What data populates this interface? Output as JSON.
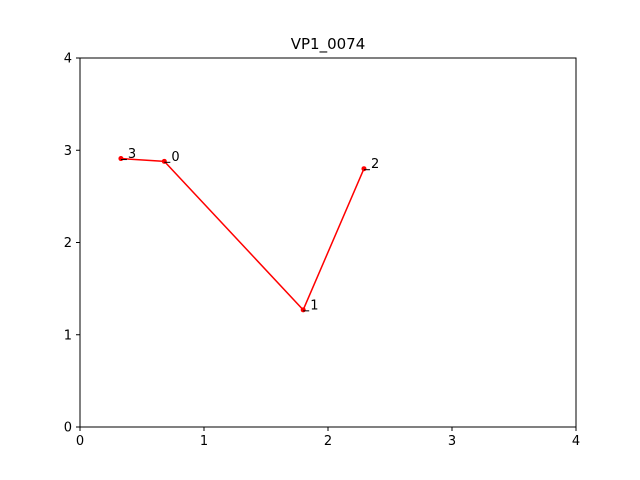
{
  "chart_data": {
    "type": "line",
    "title": "VP1_0074",
    "xlabel": "",
    "ylabel": "",
    "xlim": [
      0,
      4
    ],
    "ylim": [
      0,
      4
    ],
    "x_ticks": [
      "0",
      "1",
      "2",
      "3",
      "4"
    ],
    "y_ticks": [
      "0",
      "1",
      "2",
      "3",
      "4"
    ],
    "grid": false,
    "legend": "none",
    "series": [
      {
        "color": "#ff0000",
        "points": [
          {
            "label": "0",
            "x": 0.68,
            "y": 2.88
          },
          {
            "label": "1",
            "x": 1.8,
            "y": 1.27
          },
          {
            "label": "2",
            "x": 2.29,
            "y": 2.8
          },
          {
            "label": "3",
            "x": 0.33,
            "y": 2.91
          }
        ],
        "path_order": [
          "3",
          "0",
          "1",
          "2"
        ]
      }
    ]
  }
}
